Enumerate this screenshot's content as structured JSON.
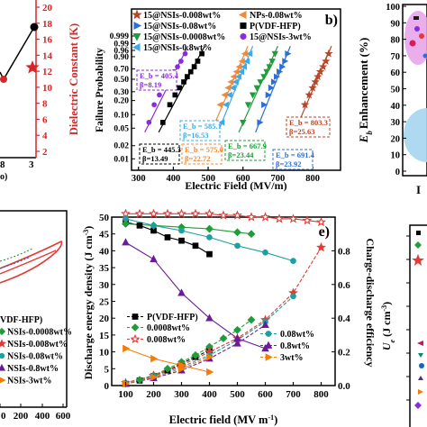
{
  "panel_a": {
    "y_axis_label": "Dielectric Constant (K)",
    "y_ticks": [
      "2",
      "4",
      "6",
      "8",
      "10",
      "12",
      "14",
      "16",
      "18",
      "20"
    ],
    "x_ticks": [
      "8",
      "3"
    ],
    "x_partial_label": "o)",
    "colors": {
      "axis": "#d62728",
      "star": "#d62728",
      "line": "#000000"
    }
  },
  "panel_e": {
    "legend": [
      "P(VDF-HFP)",
      "0.0008wt%",
      "0.008wt%",
      "0.08wt%",
      "0.8wt%",
      "3wt%"
    ]
  },
  "panel_f": {
    "y_label": "U",
    "y_sub": "e",
    "y_unit": "(J cm",
    "y_unit_sup": "-3",
    "y_unit_end": ")"
  },
  "panel_bl": {
    "legend": [
      "VDF-HFP)",
      "NSIs-0.0008wt%",
      "NSIs-0.008wt%",
      "NSIs-0.08wt%",
      "NSIs-0.8wt%",
      "NSIs-3wt%"
    ],
    "x_ticks": [
      "0",
      "200",
      "400",
      "600"
    ]
  },
  "panel_right_top": {
    "y_ticks": [
      "0",
      "10",
      "20",
      "30",
      "40",
      "50",
      "60",
      "70",
      "80",
      "90",
      "100"
    ],
    "y_label": "Enhancement (%)",
    "y_label_prefix": "E",
    "y_label_sub": "b",
    "partial_x_text": "I"
  },
  "chart_data": [
    {
      "id": "b",
      "type": "scatter",
      "panel_label": "b)",
      "xlabel": "Electric Field (MV/m)",
      "ylabel": "Failure Probability",
      "xlim": [
        280,
        880
      ],
      "x_ticks": [
        300,
        400,
        500,
        600,
        700,
        800
      ],
      "y_scale": "weibull",
      "y_ticks": [
        "0.999",
        "0.99",
        "0.96",
        "0.90",
        "0.70",
        "0.50",
        "0.30",
        "0.20",
        "0.10",
        "0.05",
        "0.02",
        "0.01"
      ],
      "legend": [
        "15@NSIs-0.008wt%",
        "NPs-0.08wt%",
        "15@NSIs-0.08wt%",
        "P(VDF-HFP)",
        "15@NSIs-0.0008wt%",
        "15@NSIs-3wt%",
        "15@NSIs-0.8wt%"
      ],
      "series": [
        {
          "name": "15@NSIs-0.008wt%",
          "marker": "star",
          "color": "#b5472a",
          "Eb": "803.3",
          "beta": "25.63",
          "label_lines": [
            "E_b = 803.3",
            "β=25.63"
          ],
          "x": [
            760,
            778,
            790,
            800,
            808,
            815,
            822,
            830,
            838,
            846
          ]
        },
        {
          "name": "NPs-0.08wt%",
          "marker": "tri-left",
          "color": "#f08a3c",
          "Eb": "575.0",
          "beta": "22.72",
          "label_lines": [
            "E_b = 575.0",
            "β=22.72"
          ],
          "x": [
            520,
            535,
            548,
            558,
            566,
            574,
            582,
            590,
            598,
            606
          ]
        },
        {
          "name": "15@NSIs-0.08wt%",
          "marker": "tri-right",
          "color": "#2b6fd6",
          "Eb": "691.4",
          "beta": "23.92",
          "label_lines": [
            "E_b = 691.4",
            "β=23.92"
          ],
          "x": [
            648,
            660,
            672,
            680,
            688,
            696,
            704,
            712,
            720,
            728
          ]
        },
        {
          "name": "P(VDF-HFP)",
          "marker": "square",
          "color": "#000000",
          "Eb": "445.3",
          "beta": "13.49",
          "label_lines": [
            "E_b = 445.3",
            "β=13.49"
          ],
          "x": [
            370,
            390,
            405,
            418,
            430,
            440,
            450,
            460,
            470,
            482
          ]
        },
        {
          "name": "15@NSIs-0.0008wt%",
          "marker": "tri-down",
          "color": "#1f9d3a",
          "Eb": "667.9",
          "beta": "23.44",
          "label_lines": [
            "E_b = 667.9",
            "β=23.44"
          ],
          "x": [
            600,
            615,
            628,
            640,
            650,
            660,
            668,
            676,
            684,
            692
          ]
        },
        {
          "name": "15@NSIs-3wt%",
          "marker": "circle",
          "color": "#8a2be2",
          "Eb": "405.4",
          "beta": "8.19",
          "label_lines": [
            "E_b = 405.4",
            "β=8.19"
          ],
          "x": [
            330,
            345,
            360,
            372,
            382,
            392,
            402,
            412,
            422,
            434
          ]
        },
        {
          "name": "15@NSIs-0.8wt%",
          "marker": "tri-left",
          "color": "#3fa9e8",
          "Eb": "585.1",
          "beta": "16.53",
          "label_lines": [
            "E_b = 585.1",
            "β=16.53"
          ],
          "x": [
            540,
            552,
            562,
            572,
            580,
            588,
            596,
            604,
            612,
            620
          ]
        }
      ]
    },
    {
      "id": "e",
      "type": "line",
      "panel_label": "e)",
      "xlabel": "Electric field (MV m",
      "xlabel_sup": "-1",
      "xlabel_end": ")",
      "ylabel": "Discharge energy density (J cm",
      "ylabel_sup": "-3",
      "ylabel_end": ")",
      "y2label": "Charge-discharge efficiency",
      "xlim": [
        50,
        850
      ],
      "ylim": [
        0,
        50
      ],
      "y2lim": [
        0,
        1.0
      ],
      "x_ticks": [
        100,
        200,
        300,
        400,
        500,
        600,
        700,
        800
      ],
      "y_ticks": [
        0,
        5,
        10,
        15,
        20,
        25,
        30,
        35,
        40,
        45,
        50
      ],
      "y2_ticks": [
        "0.0",
        "0.2",
        "0.4",
        "0.6",
        "0.8"
      ],
      "y2_tick_values": [
        0.0,
        0.2,
        0.4,
        0.6,
        0.8
      ],
      "series": [
        {
          "name": "P(VDF-HFP)",
          "marker": "square",
          "color": "#000000",
          "axis": "left",
          "x": [
            100,
            150,
            200,
            250,
            300,
            350,
            400
          ],
          "y": [
            0.5,
            1.5,
            2.8,
            4.5,
            6.5,
            8.5,
            10.5
          ]
        },
        {
          "name": "0.0008wt%",
          "marker": "diamond",
          "color": "#1f9d3a",
          "axis": "left",
          "x": [
            100,
            150,
            200,
            250,
            300,
            350,
            400,
            450,
            500,
            550
          ],
          "y": [
            0.6,
            1.7,
            3.0,
            5.0,
            7.0,
            9.0,
            11.5,
            14.0,
            16.5,
            19.5
          ]
        },
        {
          "name": "0.008wt%",
          "marker": "star",
          "color": "#e53935",
          "axis": "left",
          "x": [
            100,
            200,
            300,
            400,
            500,
            600,
            700,
            800
          ],
          "y": [
            0.8,
            3.0,
            6.0,
            10.0,
            14.0,
            19.5,
            27.5,
            41.0
          ]
        },
        {
          "name": "0.08wt%",
          "marker": "circle",
          "color": "#1e9fa0",
          "axis": "left",
          "x": [
            100,
            200,
            300,
            400,
            500,
            600,
            700
          ],
          "y": [
            0.7,
            2.8,
            5.5,
            9.0,
            13.5,
            19.0,
            26.5
          ]
        },
        {
          "name": "0.8wt%",
          "marker": "tri-up",
          "color": "#6a1b9a",
          "axis": "left",
          "x": [
            100,
            200,
            300,
            400,
            500,
            600
          ],
          "y": [
            0.5,
            2.2,
            4.5,
            8.0,
            12.5,
            18.0
          ]
        },
        {
          "name": "3wt%",
          "marker": "tri-right",
          "color": "#f57c00",
          "axis": "left",
          "x": [
            100,
            200,
            300,
            400
          ],
          "y": [
            0.6,
            2.5,
            5.0,
            8.5
          ]
        },
        {
          "name": "P(VDF-HFP) efficiency",
          "marker": "square",
          "color": "#000000",
          "axis": "right",
          "x": [
            100,
            150,
            200,
            250,
            300,
            350,
            400
          ],
          "y": [
            0.97,
            0.95,
            0.92,
            0.88,
            0.86,
            0.83,
            0.78
          ]
        },
        {
          "name": "0.0008wt% efficiency",
          "marker": "diamond",
          "color": "#1f9d3a",
          "axis": "right",
          "x": [
            100,
            200,
            300,
            400,
            500,
            550
          ],
          "y": [
            0.96,
            0.95,
            0.94,
            0.93,
            0.91,
            0.9
          ]
        },
        {
          "name": "0.008wt% efficiency",
          "marker": "star",
          "color": "#e53935",
          "axis": "right",
          "x": [
            100,
            150,
            200,
            250,
            300,
            350,
            400,
            450,
            500,
            550,
            600,
            650,
            700,
            750,
            800
          ],
          "y": [
            1.02,
            1.02,
            1.02,
            1.02,
            1.02,
            1.02,
            1.02,
            1.01,
            1.01,
            1.0,
            1.0,
            0.99,
            0.99,
            0.98,
            0.97
          ]
        },
        {
          "name": "0.08wt% efficiency",
          "marker": "circle",
          "color": "#1e9fa0",
          "axis": "right",
          "x": [
            100,
            200,
            300,
            400,
            500,
            600,
            700
          ],
          "y": [
            0.99,
            0.95,
            0.92,
            0.88,
            0.83,
            0.79,
            0.74
          ]
        },
        {
          "name": "0.8wt% efficiency",
          "marker": "tri-up",
          "color": "#6a1b9a",
          "axis": "right",
          "x": [
            100,
            200,
            300,
            400,
            500,
            600
          ],
          "y": [
            0.85,
            0.75,
            0.55,
            0.4,
            0.28,
            0.22
          ]
        },
        {
          "name": "3wt% efficiency",
          "marker": "tri-right",
          "color": "#f57c00",
          "axis": "right",
          "x": [
            100,
            200,
            300,
            400
          ],
          "y": [
            0.22,
            0.16,
            0.12,
            0.08
          ]
        }
      ]
    }
  ]
}
